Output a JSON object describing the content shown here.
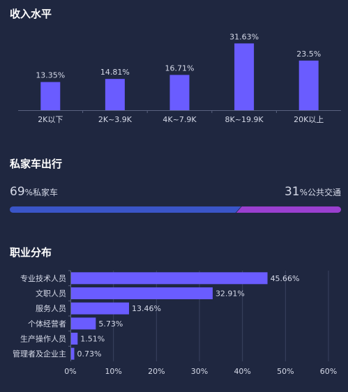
{
  "colors": {
    "background": "#1f2740",
    "bar": "#6a5cff",
    "private_bar": "#3a55c8",
    "public_bar": "#9a3fd0",
    "axis": "#5a6380",
    "grid": "#3a4260"
  },
  "income": {
    "title": "收入水平"
  },
  "car": {
    "title": "私家车出行",
    "private_value": "69",
    "private_unit": "%",
    "private_label": "私家车",
    "public_value": "31",
    "public_unit": "%",
    "public_label": "公共交通"
  },
  "job": {
    "title": "职业分布"
  },
  "chart_data": [
    {
      "type": "bar",
      "title": "收入水平",
      "categories": [
        "2K以下",
        "2K~3.9K",
        "4K~7.9K",
        "8K~19.9K",
        "20K以上"
      ],
      "values": [
        13.35,
        14.81,
        16.71,
        31.63,
        23.5
      ],
      "value_labels": [
        "13.35%",
        "14.81%",
        "16.71%",
        "31.63%",
        "23.5%"
      ],
      "ylim": [
        0,
        35
      ],
      "grid": false
    },
    {
      "type": "bar",
      "title": "私家车出行",
      "orientation": "stacked-horizontal",
      "categories": [
        "私家车",
        "公共交通"
      ],
      "values": [
        69,
        31
      ]
    },
    {
      "type": "bar",
      "title": "职业分布",
      "orientation": "horizontal",
      "categories": [
        "专业技术人员",
        "文职人员",
        "服务人员",
        "个体经营者",
        "生产操作人员",
        "管理者及企业主"
      ],
      "values": [
        45.66,
        32.91,
        13.46,
        5.73,
        1.51,
        0.73
      ],
      "value_labels": [
        "45.66%",
        "32.91%",
        "13.46%",
        "5.73%",
        "1.51%",
        "0.73%"
      ],
      "xticks": [
        "0%",
        "10%",
        "20%",
        "30%",
        "40%",
        "50%",
        "60%"
      ],
      "xlim": [
        0,
        60
      ],
      "grid": true
    }
  ]
}
